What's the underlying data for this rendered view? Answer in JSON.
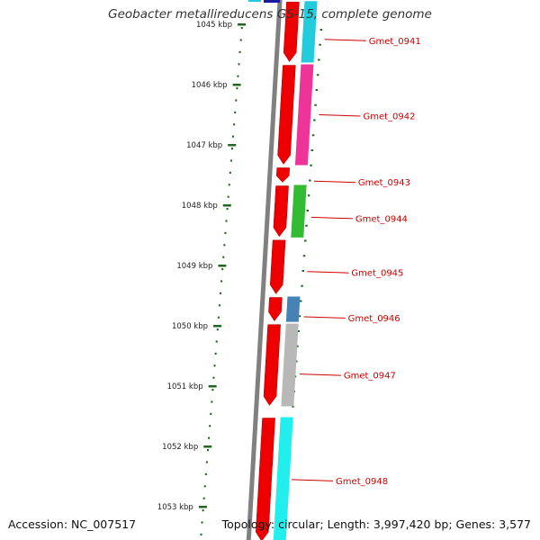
{
  "title": "Geobacter metallireducens GS-15, complete genome",
  "footer": {
    "accession": "Accession: NC_007517",
    "summary": "Topology: circular; Length: 3,997,420 bp; Genes: 3,577"
  },
  "colors": {
    "backbone": "#808080",
    "cds": "#ee0000",
    "tick": "#226622",
    "label": "#cc0000"
  },
  "ticks": [
    {
      "label": "1045 kbp",
      "kbp": 1045
    },
    {
      "label": "1046 kbp",
      "kbp": 1046
    },
    {
      "label": "1047 kbp",
      "kbp": 1047
    },
    {
      "label": "1048 kbp",
      "kbp": 1048
    },
    {
      "label": "1049 kbp",
      "kbp": 1049
    },
    {
      "label": "1050 kbp",
      "kbp": 1050
    },
    {
      "label": "1051 kbp",
      "kbp": 1051
    },
    {
      "label": "1052 kbp",
      "kbp": 1052
    },
    {
      "label": "1053 kbp",
      "kbp": 1053
    }
  ],
  "cds": [
    {
      "start": 1044.6,
      "end": 1045.65,
      "strand": "+"
    },
    {
      "start": 1045.65,
      "end": 1047.35,
      "strand": "+"
    },
    {
      "start": 1047.35,
      "end": 1047.65,
      "strand": "+"
    },
    {
      "start": 1047.65,
      "end": 1048.55,
      "strand": "+"
    },
    {
      "start": 1048.55,
      "end": 1049.5,
      "strand": "+"
    },
    {
      "start": 1049.5,
      "end": 1049.95,
      "strand": "+"
    },
    {
      "start": 1049.95,
      "end": 1051.35,
      "strand": "+"
    },
    {
      "start": 1051.5,
      "end": 1053.6,
      "strand": "+"
    }
  ],
  "genes": [
    {
      "name": "Gmet_0941",
      "start": 1044.6,
      "end": 1045.65,
      "color": "#22ccdd",
      "label_kbp": 1045.25
    },
    {
      "name": "Gmet_0942",
      "start": 1045.65,
      "end": 1047.35,
      "color": "#ee3399",
      "label_kbp": 1046.5
    },
    {
      "name": "Gmet_0943",
      "start": 1047.35,
      "end": 1047.65,
      "color": "#ffffff",
      "label_kbp": 1047.6
    },
    {
      "name": "Gmet_0944",
      "start": 1047.65,
      "end": 1048.55,
      "color": "#33bb33",
      "label_kbp": 1048.2
    },
    {
      "name": "Gmet_0945",
      "start": 1048.55,
      "end": 1049.5,
      "color": "#ffffff",
      "label_kbp": 1049.1
    },
    {
      "name": "Gmet_0946",
      "start": 1049.5,
      "end": 1049.95,
      "color": "#4682b4",
      "label_kbp": 1049.85
    },
    {
      "name": "Gmet_0947",
      "start": 1049.95,
      "end": 1051.35,
      "color": "#b8b8b8",
      "label_kbp": 1050.8
    },
    {
      "name": "Gmet_0948",
      "start": 1051.5,
      "end": 1053.6,
      "color": "#22eeee",
      "label_kbp": 1052.55
    }
  ]
}
